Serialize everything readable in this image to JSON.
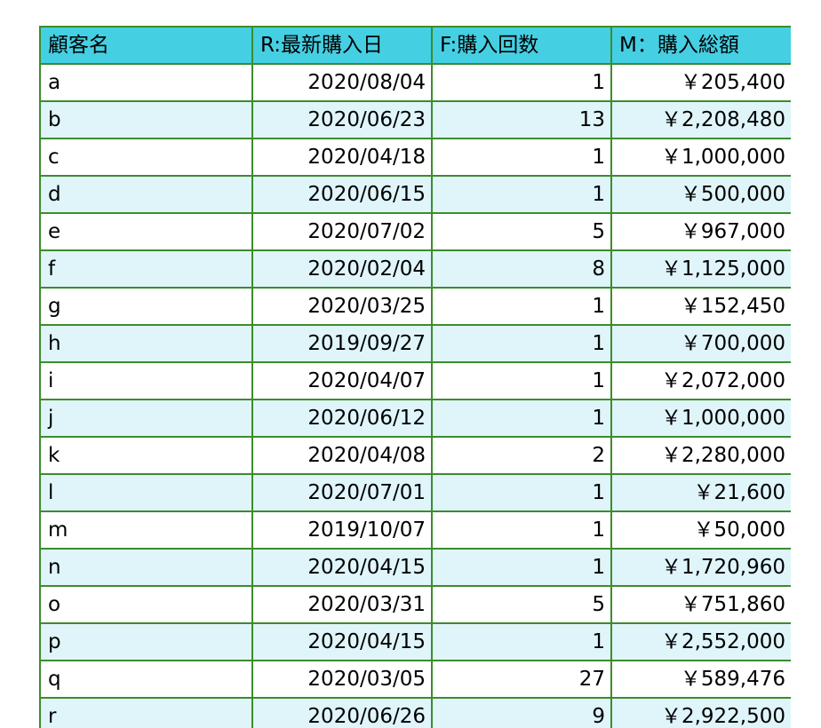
{
  "table": {
    "headers": [
      "顧客名",
      "R:最新購入日",
      "F:購入回数",
      "M：購入総額"
    ],
    "rows": [
      [
        "a",
        "2020/08/04",
        "1",
        "￥205,400"
      ],
      [
        "b",
        "2020/06/23",
        "13",
        "￥2,208,480"
      ],
      [
        "c",
        "2020/04/18",
        "1",
        "￥1,000,000"
      ],
      [
        "d",
        "2020/06/15",
        "1",
        "￥500,000"
      ],
      [
        "e",
        "2020/07/02",
        "5",
        "￥967,000"
      ],
      [
        "f",
        "2020/02/04",
        "8",
        "￥1,125,000"
      ],
      [
        "g",
        "2020/03/25",
        "1",
        "￥152,450"
      ],
      [
        "h",
        "2019/09/27",
        "1",
        "￥700,000"
      ],
      [
        "i",
        "2020/04/07",
        "1",
        "￥2,072,000"
      ],
      [
        "j",
        "2020/06/12",
        "1",
        "￥1,000,000"
      ],
      [
        "k",
        "2020/04/08",
        "2",
        "￥2,280,000"
      ],
      [
        "l",
        "2020/07/01",
        "1",
        "￥21,600"
      ],
      [
        "m",
        "2019/10/07",
        "1",
        "￥50,000"
      ],
      [
        "n",
        "2020/04/15",
        "1",
        "￥1,720,960"
      ],
      [
        "o",
        "2020/03/31",
        "5",
        "￥751,860"
      ],
      [
        "p",
        "2020/04/15",
        "1",
        "￥2,552,000"
      ],
      [
        "q",
        "2020/03/05",
        "27",
        "￥589,476"
      ],
      [
        "r",
        "2020/06/26",
        "9",
        "￥2,922,500"
      ]
    ]
  },
  "colors": {
    "header_bg": "#45cfe3",
    "border": "#3c8c2c",
    "stripe": "#dff5fa"
  }
}
